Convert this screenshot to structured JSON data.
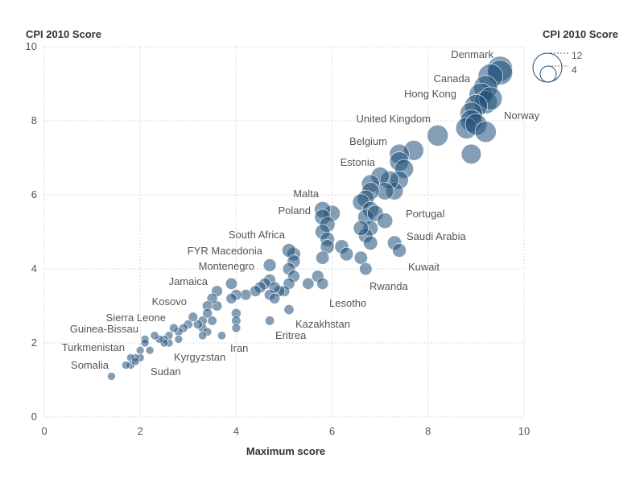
{
  "chart_data": {
    "type": "scatter",
    "y_title": "CPI 2010 Score",
    "x_title": "Maximum score",
    "xlim": [
      0,
      10
    ],
    "ylim": [
      0,
      10
    ],
    "x_ticks": [
      "0",
      "2",
      "4",
      "6",
      "8",
      "10"
    ],
    "y_ticks": [
      "0",
      "2",
      "4",
      "6",
      "8",
      "10"
    ],
    "grid": true,
    "point_color": "#1f4e79",
    "size_legend": {
      "title": "CPI 2010 Score",
      "entries": [
        "12",
        "4"
      ],
      "placement": "top-right"
    },
    "labels": [
      {
        "text": "Denmark",
        "x": 9.3,
        "y": 9.3
      },
      {
        "text": "Canada",
        "x": 9.1,
        "y": 8.9
      },
      {
        "text": "Hong Kong",
        "x": 9.0,
        "y": 8.4
      },
      {
        "text": "Norway",
        "x": 9.2,
        "y": 8.6
      },
      {
        "text": "United Kingdom",
        "x": 8.8,
        "y": 7.8
      },
      {
        "text": "Belgium",
        "x": 7.2,
        "y": 7.1
      },
      {
        "text": "Estonia",
        "x": 7.0,
        "y": 6.5
      },
      {
        "text": "Malta",
        "x": 5.8,
        "y": 5.6
      },
      {
        "text": "Poland",
        "x": 5.8,
        "y": 5.3
      },
      {
        "text": "Portugal",
        "x": 7.3,
        "y": 6.0
      },
      {
        "text": "Saudi Arabia",
        "x": 7.4,
        "y": 4.7
      },
      {
        "text": "South Africa",
        "x": 5.1,
        "y": 4.5
      },
      {
        "text": "FYR Macedonia",
        "x": 4.7,
        "y": 4.1
      },
      {
        "text": "Kuwait",
        "x": 7.3,
        "y": 4.5
      },
      {
        "text": "Montenegro",
        "x": 4.6,
        "y": 3.7
      },
      {
        "text": "Jamaica",
        "x": 3.6,
        "y": 3.3
      },
      {
        "text": "Rwanda",
        "x": 6.7,
        "y": 4.0
      },
      {
        "text": "Kosovo",
        "x": 3.3,
        "y": 2.8
      },
      {
        "text": "Lesotho",
        "x": 5.8,
        "y": 3.5
      },
      {
        "text": "Sierra Leone",
        "x": 2.8,
        "y": 2.4
      },
      {
        "text": "Kazakhstan",
        "x": 5.1,
        "y": 2.9
      },
      {
        "text": "Guinea-Bissau",
        "x": 2.3,
        "y": 2.1
      },
      {
        "text": "Eritrea",
        "x": 4.7,
        "y": 2.6
      },
      {
        "text": "Turkmenistan",
        "x": 1.8,
        "y": 1.6
      },
      {
        "text": "Iran",
        "x": 4.0,
        "y": 2.2
      },
      {
        "text": "Kyrgyzstan",
        "x": 3.3,
        "y": 2.0
      },
      {
        "text": "Somalia",
        "x": 1.4,
        "y": 1.1
      },
      {
        "text": "Sudan",
        "x": 2.0,
        "y": 1.6
      }
    ],
    "points": [
      [
        9.5,
        9.4
      ],
      [
        9.5,
        9.3
      ],
      [
        9.3,
        9.2
      ],
      [
        9.2,
        8.9
      ],
      [
        9.1,
        8.7
      ],
      [
        9.2,
        8.5
      ],
      [
        9.3,
        8.6
      ],
      [
        9.0,
        8.4
      ],
      [
        8.9,
        8.2
      ],
      [
        8.9,
        8.0
      ],
      [
        8.8,
        7.8
      ],
      [
        9.0,
        7.9
      ],
      [
        9.2,
        7.7
      ],
      [
        8.9,
        7.1
      ],
      [
        8.2,
        7.6
      ],
      [
        7.7,
        7.2
      ],
      [
        7.4,
        7.1
      ],
      [
        7.4,
        6.9
      ],
      [
        7.5,
        6.7
      ],
      [
        7.4,
        6.4
      ],
      [
        7.3,
        6.1
      ],
      [
        7.2,
        6.4
      ],
      [
        7.0,
        6.5
      ],
      [
        7.1,
        6.1
      ],
      [
        6.8,
        6.3
      ],
      [
        6.8,
        6.1
      ],
      [
        6.7,
        5.9
      ],
      [
        6.6,
        5.8
      ],
      [
        6.8,
        5.6
      ],
      [
        6.7,
        5.4
      ],
      [
        6.9,
        5.5
      ],
      [
        7.1,
        5.3
      ],
      [
        6.8,
        5.1
      ],
      [
        6.7,
        4.9
      ],
      [
        6.8,
        4.7
      ],
      [
        6.6,
        5.1
      ],
      [
        7.3,
        4.7
      ],
      [
        7.4,
        4.5
      ],
      [
        6.6,
        4.3
      ],
      [
        6.7,
        4.0
      ],
      [
        6.2,
        4.6
      ],
      [
        6.3,
        4.4
      ],
      [
        6.0,
        5.5
      ],
      [
        5.8,
        5.6
      ],
      [
        5.8,
        5.4
      ],
      [
        5.9,
        5.2
      ],
      [
        5.8,
        5.0
      ],
      [
        5.9,
        4.8
      ],
      [
        5.9,
        4.6
      ],
      [
        5.8,
        4.3
      ],
      [
        5.7,
        3.8
      ],
      [
        5.8,
        3.6
      ],
      [
        5.5,
        3.6
      ],
      [
        5.2,
        4.4
      ],
      [
        5.1,
        4.5
      ],
      [
        5.2,
        4.2
      ],
      [
        5.1,
        4.0
      ],
      [
        5.2,
        3.8
      ],
      [
        5.1,
        3.6
      ],
      [
        5.0,
        3.4
      ],
      [
        4.9,
        3.4
      ],
      [
        4.7,
        4.1
      ],
      [
        4.7,
        3.7
      ],
      [
        4.8,
        3.5
      ],
      [
        4.7,
        3.3
      ],
      [
        4.8,
        3.2
      ],
      [
        5.1,
        2.9
      ],
      [
        4.7,
        2.6
      ],
      [
        4.6,
        3.6
      ],
      [
        4.5,
        3.5
      ],
      [
        4.4,
        3.4
      ],
      [
        4.2,
        3.3
      ],
      [
        4.0,
        3.3
      ],
      [
        3.9,
        3.6
      ],
      [
        3.9,
        3.2
      ],
      [
        4.0,
        2.8
      ],
      [
        4.0,
        2.6
      ],
      [
        4.0,
        2.4
      ],
      [
        3.7,
        2.2
      ],
      [
        3.6,
        3.4
      ],
      [
        3.6,
        3.0
      ],
      [
        3.5,
        3.2
      ],
      [
        3.4,
        3.0
      ],
      [
        3.4,
        2.8
      ],
      [
        3.3,
        2.6
      ],
      [
        3.5,
        2.6
      ],
      [
        3.3,
        2.4
      ],
      [
        3.4,
        2.3
      ],
      [
        3.3,
        2.2
      ],
      [
        3.2,
        2.5
      ],
      [
        3.1,
        2.7
      ],
      [
        3.0,
        2.5
      ],
      [
        2.9,
        2.4
      ],
      [
        2.8,
        2.3
      ],
      [
        2.8,
        2.1
      ],
      [
        2.7,
        2.4
      ],
      [
        2.6,
        2.2
      ],
      [
        2.6,
        2.0
      ],
      [
        2.5,
        2.1
      ],
      [
        2.5,
        2.0
      ],
      [
        2.4,
        2.1
      ],
      [
        2.3,
        2.2
      ],
      [
        2.2,
        1.8
      ],
      [
        2.1,
        2.1
      ],
      [
        2.1,
        2.0
      ],
      [
        2.0,
        1.8
      ],
      [
        2.0,
        1.6
      ],
      [
        1.9,
        1.6
      ],
      [
        1.8,
        1.6
      ],
      [
        1.8,
        1.4
      ],
      [
        1.7,
        1.4
      ],
      [
        1.9,
        1.5
      ],
      [
        1.4,
        1.1
      ]
    ]
  }
}
